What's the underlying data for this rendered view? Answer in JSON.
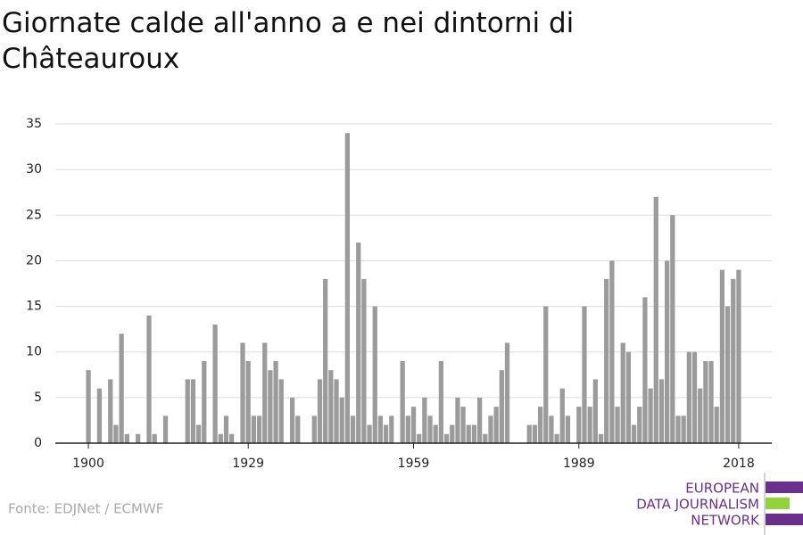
{
  "chart_data": {
    "type": "bar",
    "title": "Giornate calde all'anno a e nei dintorni di Châteauroux",
    "source": "Fonte: EDJNet / ECMWF",
    "logo": [
      "EUROPEAN",
      "DATA JOURNALISM",
      "NETWORK"
    ],
    "color": "#9b9b9b",
    "x": [
      1900,
      1901,
      1902,
      1903,
      1904,
      1905,
      1906,
      1907,
      1908,
      1909,
      1910,
      1911,
      1912,
      1913,
      1914,
      1915,
      1916,
      1917,
      1918,
      1919,
      1920,
      1921,
      1922,
      1923,
      1924,
      1925,
      1926,
      1927,
      1928,
      1929,
      1930,
      1931,
      1932,
      1933,
      1934,
      1935,
      1936,
      1937,
      1938,
      1939,
      1940,
      1941,
      1942,
      1943,
      1944,
      1945,
      1946,
      1947,
      1948,
      1949,
      1950,
      1951,
      1952,
      1953,
      1954,
      1955,
      1956,
      1957,
      1958,
      1959,
      1960,
      1961,
      1962,
      1963,
      1964,
      1965,
      1966,
      1967,
      1968,
      1969,
      1970,
      1971,
      1972,
      1973,
      1974,
      1975,
      1976,
      1977,
      1978,
      1979,
      1980,
      1981,
      1982,
      1983,
      1984,
      1985,
      1986,
      1987,
      1988,
      1989,
      1990,
      1991,
      1992,
      1993,
      1994,
      1995,
      1996,
      1997,
      1998,
      1999,
      2000,
      2001,
      2002,
      2003,
      2004,
      2005,
      2006,
      2007,
      2008,
      2009,
      2010,
      2011,
      2012,
      2013,
      2014,
      2015,
      2016,
      2017,
      2018
    ],
    "values": [
      8,
      0,
      6,
      0,
      7,
      2,
      12,
      1,
      0,
      1,
      0,
      14,
      1,
      0,
      3,
      0,
      0,
      0,
      7,
      7,
      2,
      9,
      0,
      13,
      1,
      3,
      1,
      0,
      11,
      9,
      3,
      3,
      11,
      8,
      9,
      7,
      0,
      5,
      3,
      0,
      0,
      3,
      7,
      18,
      8,
      7,
      5,
      34,
      3,
      22,
      18,
      2,
      15,
      3,
      2,
      3,
      0,
      9,
      3,
      4,
      1,
      5,
      3,
      2,
      9,
      1,
      2,
      5,
      4,
      2,
      2,
      5,
      1,
      3,
      4,
      8,
      11,
      0,
      0,
      0,
      2,
      2,
      4,
      15,
      3,
      1,
      6,
      3,
      0,
      4,
      15,
      4,
      7,
      1,
      18,
      20,
      4,
      11,
      10,
      2,
      4,
      16,
      6,
      27,
      7,
      20,
      25,
      3,
      3,
      10,
      10,
      6,
      9,
      9,
      4,
      19,
      15,
      18,
      19
    ],
    "xlim": [
      1894,
      2024
    ],
    "xticks": [
      1900,
      1929,
      1959,
      1989,
      2018
    ],
    "ylim": [
      0,
      35
    ],
    "yticks": [
      0,
      5,
      10,
      15,
      20,
      25,
      30,
      35
    ],
    "grid": true
  }
}
